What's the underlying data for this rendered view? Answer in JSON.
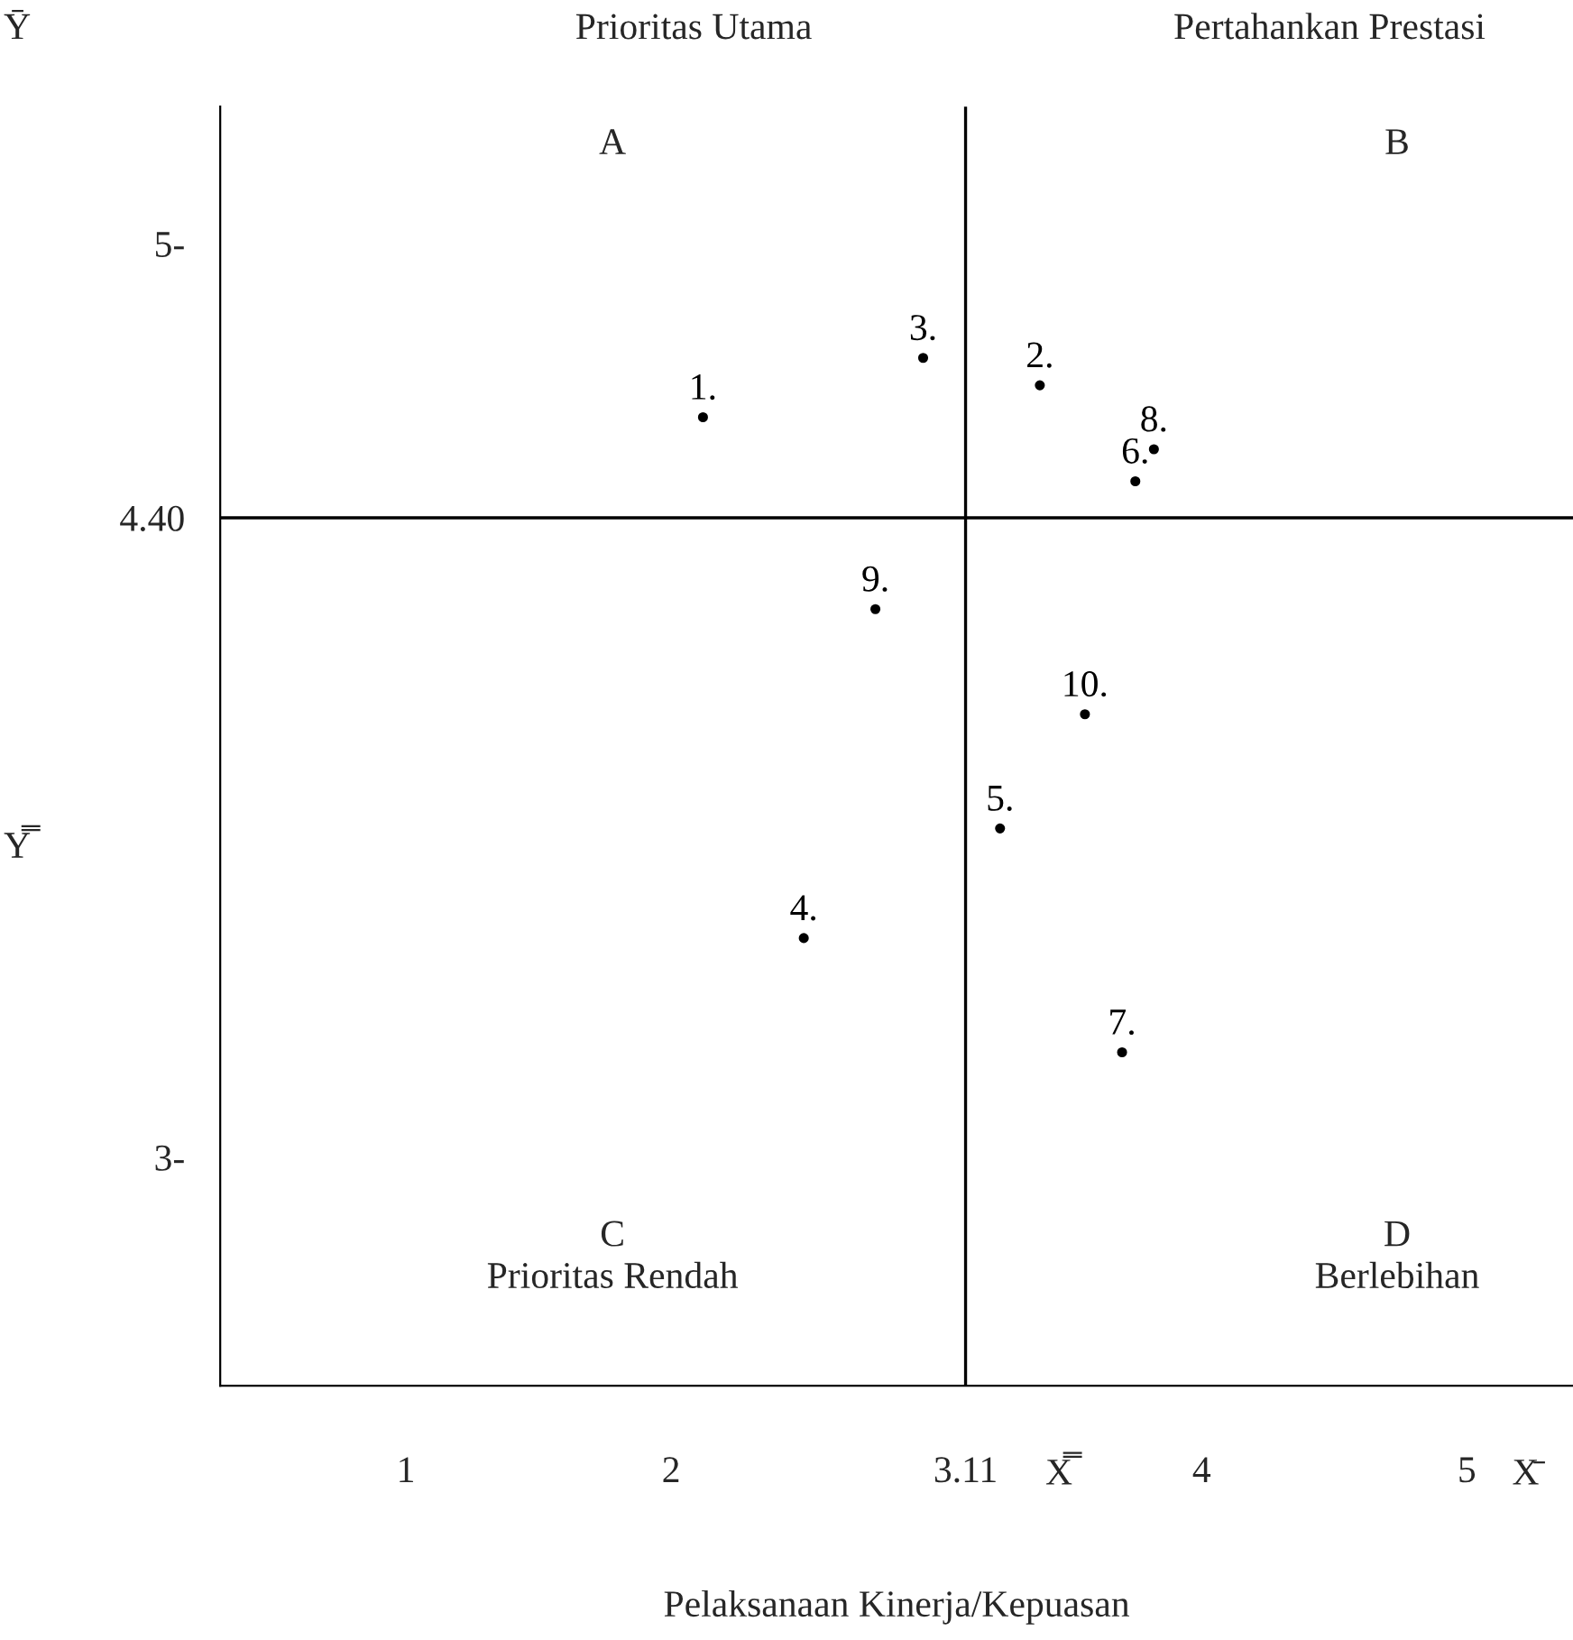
{
  "chart_data": {
    "type": "scatter",
    "xlabel": "Pelaksanaan Kinerja/Kepuasan",
    "xlim": [
      0.3,
      5.4
    ],
    "ylim": [
      2.5,
      5.3
    ],
    "xticks": [
      1,
      2,
      3.11,
      4,
      5
    ],
    "yticks": [
      {
        "value": 3,
        "label": "3-"
      },
      {
        "value": 4.4,
        "label": "4.40"
      },
      {
        "value": 5,
        "label": "5-"
      }
    ],
    "grid": false,
    "marker": "circle",
    "legend": false,
    "ref_lines": [
      {
        "axis": "x",
        "value": 3.11,
        "color": "#000000"
      },
      {
        "axis": "y",
        "value": 4.4,
        "color": "#000000"
      }
    ],
    "series": [
      {
        "name": "1.",
        "color": "#000000",
        "x": [
          2.12
        ],
        "values": [
          4.62
        ]
      },
      {
        "name": "2.",
        "color": "#000000",
        "x": [
          3.39
        ],
        "values": [
          4.69
        ]
      },
      {
        "name": "3.",
        "color": "#000000",
        "x": [
          2.95
        ],
        "values": [
          4.75
        ]
      },
      {
        "name": "4.",
        "color": "#000000",
        "x": [
          2.5
        ],
        "values": [
          3.48
        ]
      },
      {
        "name": "5.",
        "color": "#000000",
        "x": [
          3.24
        ],
        "values": [
          3.72
        ]
      },
      {
        "name": "6.",
        "color": "#000000",
        "x": [
          3.75
        ],
        "values": [
          4.48
        ]
      },
      {
        "name": "7.",
        "color": "#000000",
        "x": [
          3.7
        ],
        "values": [
          3.23
        ]
      },
      {
        "name": "8.",
        "color": "#000000",
        "x": [
          3.82
        ],
        "values": [
          4.55
        ]
      },
      {
        "name": "9.",
        "color": "#000000",
        "x": [
          2.77
        ],
        "values": [
          4.2
        ]
      },
      {
        "name": "10.",
        "color": "#000000",
        "x": [
          3.56
        ],
        "values": [
          3.97
        ]
      }
    ],
    "annotations": [
      "Prioritas Utama",
      "Pertahankan Prestasi",
      "A",
      "B",
      "C\nPrioritas Rendah",
      "D\nBerlebihan",
      "Ȳ",
      "Y̿",
      "X̿",
      "X̄"
    ]
  }
}
